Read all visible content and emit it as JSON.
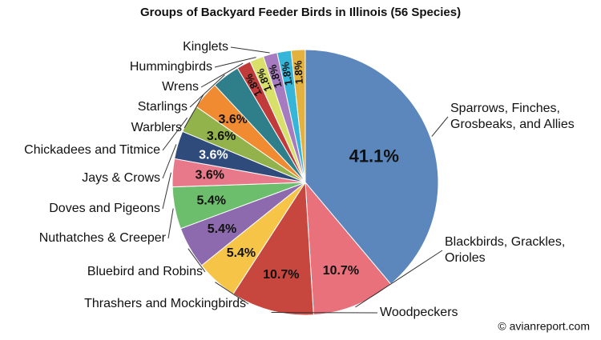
{
  "chart_data": {
    "type": "pie",
    "title": "Groups of Backyard Feeder Birds in Illinois (56 Species)",
    "credit": "© avianreport.com",
    "categories": [
      "Sparrows, Finches,\nGrosbeaks, and Allies",
      "Blackbirds, Grackles,\nOrioles",
      "Woodpeckers",
      "Thrashers and Mockingbirds",
      "Bluebird and Robins",
      "Nuthatches & Creeper",
      "Doves and Pigeons",
      "Jays & Crows",
      "Chickadees and Titmice",
      "Warblers",
      "Starlings",
      "Wrens",
      "Hummingbirds",
      "Kinglets",
      null,
      null
    ],
    "values": [
      41.1,
      10.7,
      10.7,
      5.4,
      5.4,
      5.4,
      3.6,
      3.6,
      3.6,
      3.6,
      3.6,
      1.8,
      1.8,
      1.8,
      1.8,
      1.8
    ],
    "value_labels": [
      "41.1%",
      "10.7%",
      "10.7%",
      "5.4%",
      "5.4%",
      "5.4%",
      "3.6%",
      "3.6%",
      "3.6%",
      "3.6%",
      null,
      "1.8%",
      "1.8%",
      "1.8%",
      "1.8%",
      "1.8%"
    ],
    "colors": [
      "#5b87bd",
      "#e8717b",
      "#c7463e",
      "#f6c446",
      "#8d6aae",
      "#6cbd6c",
      "#e8798a",
      "#2f4b7c",
      "#92b24c",
      "#f18b32",
      "#2f7f8a",
      "#c23b3b",
      "#d9e06a",
      "#a67bbf",
      "#35b6d8",
      "#e3b23e"
    ]
  }
}
